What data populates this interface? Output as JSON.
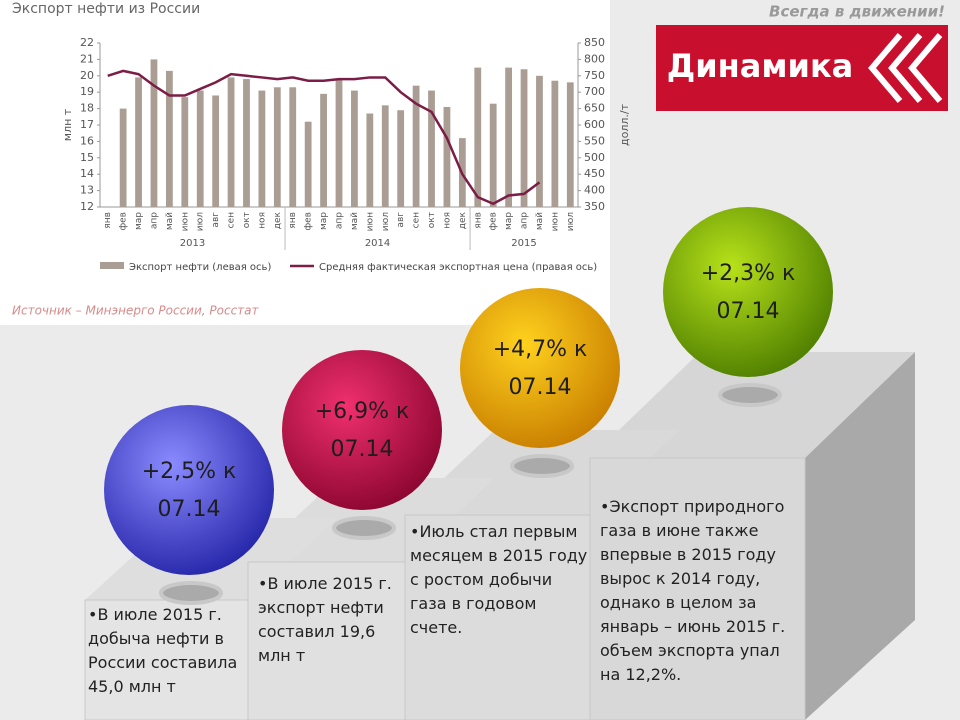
{
  "chart_data": {
    "type": "bar_line",
    "title": "Экспорт нефти из России",
    "y_label": "млн т",
    "y2_label": "долл./т",
    "categories": [
      "янв",
      "фев",
      "мар",
      "апр",
      "май",
      "июн",
      "июл",
      "авг",
      "сен",
      "окт",
      "ноя",
      "дек",
      "янв",
      "фев",
      "мар",
      "апр",
      "май",
      "июн",
      "июл",
      "авг",
      "сен",
      "окт",
      "ноя",
      "дек",
      "янв",
      "фев",
      "мар",
      "апр",
      "май",
      "июн",
      "июл"
    ],
    "year_labels": [
      "2013",
      "2014",
      "2015"
    ],
    "series": [
      {
        "name": "Экспорт нефти (левая ось)",
        "color": "#aa9d93",
        "axis": "y",
        "values": [
          null,
          18,
          19.9,
          21,
          20.3,
          18.7,
          19.1,
          18.8,
          19.9,
          19.8,
          19.1,
          19.3,
          19.3,
          17.2,
          18.9,
          19.8,
          19.1,
          17.7,
          18.2,
          17.9,
          19.4,
          19.1,
          18.1,
          16.2,
          20.5,
          18.3,
          20.5,
          20.4,
          20,
          19.7,
          19.6
        ]
      },
      {
        "name": "Средняя фактическая экспортная цена (правая ось)",
        "color": "#7b1d45",
        "axis": "y2",
        "values": [
          750,
          765,
          755,
          720,
          690,
          690,
          710,
          730,
          755,
          750,
          745,
          740,
          745,
          735,
          735,
          740,
          740,
          745,
          745,
          700,
          665,
          640,
          560,
          450,
          380,
          360,
          385,
          390,
          425,
          null,
          null
        ]
      }
    ],
    "ylim": [
      12,
      22
    ],
    "yticks": [
      12,
      13,
      14,
      15,
      16,
      17,
      18,
      19,
      20,
      21,
      22
    ],
    "y2lim": [
      350,
      850
    ],
    "y2ticks": [
      350,
      400,
      450,
      500,
      550,
      600,
      650,
      700,
      750,
      800,
      850
    ]
  },
  "source": "Источник – Минэнерго России, Росстат",
  "slogan": "Всегда в движении!",
  "header": "Динамика",
  "balls": [
    "+2,5% к 07.14",
    "+6,9% к 07.14",
    "+4,7% к 07.14",
    "+2,3% к 07.14"
  ],
  "notes": [
    "•В июле 2015 г. добыча нефти в России составила 45,0 млн т",
    "•В июле 2015 г. экспорт нефти составил 19,6 млн т",
    "•Июль стал первым месяцем в 2015 году с ростом добычи газа в годовом счете.",
    "•Экспорт природного газа в июне также впервые в 2015 году вырос к 2014 году, однако в целом за январь – июнь 2015 г. объем экспорта упал на 12,2%."
  ]
}
